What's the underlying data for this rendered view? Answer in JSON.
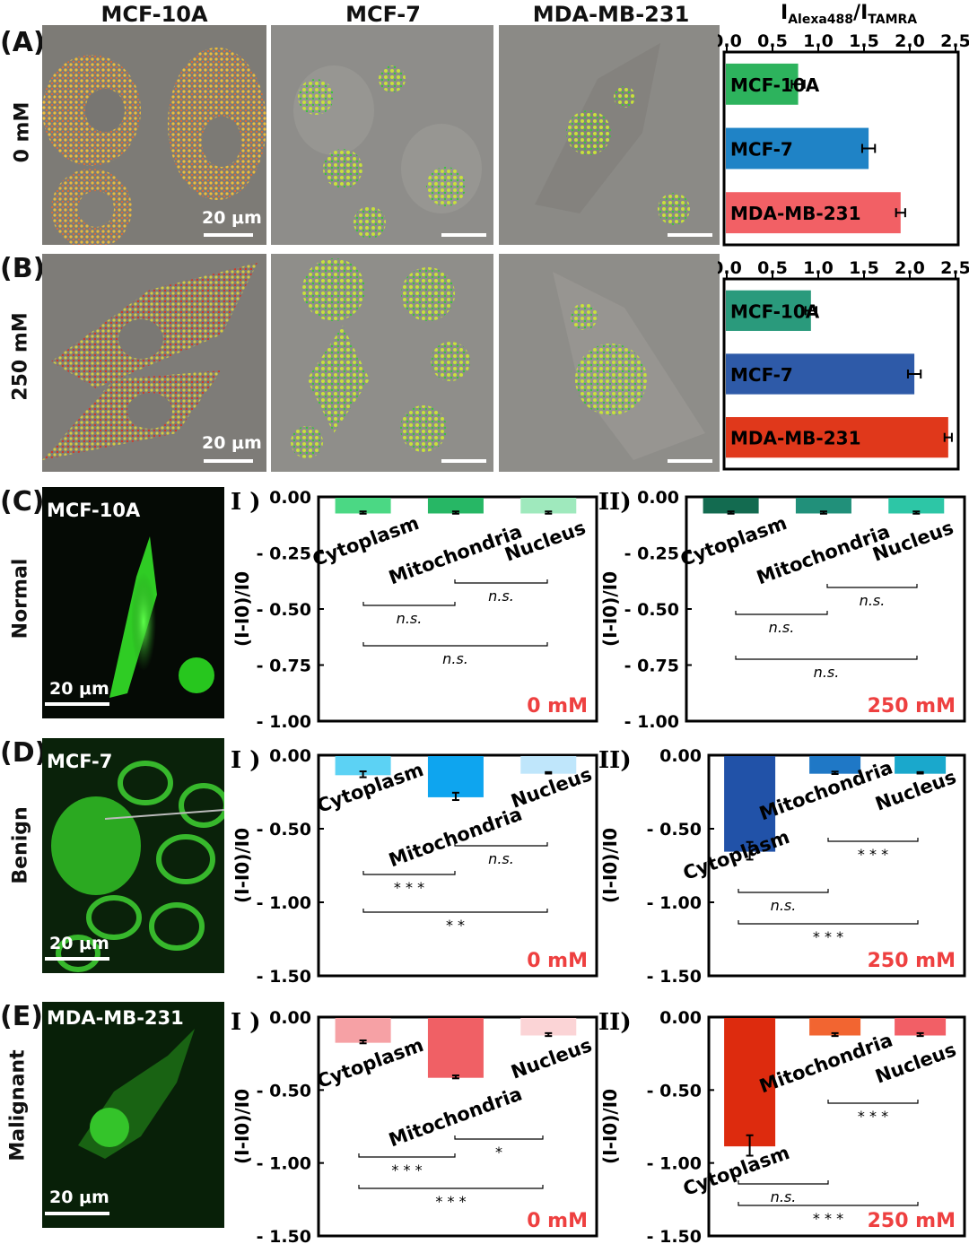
{
  "columns": {
    "mcf10a": "MCF-10A",
    "mcf7": "MCF-7",
    "mda": "MDA-MB-231"
  },
  "panels": {
    "A": "(A)",
    "B": "(B)",
    "C": "(C)",
    "D": "(D)",
    "E": "(E)"
  },
  "rows": {
    "a": "0 mM",
    "b": "250 mM",
    "c": "Normal",
    "d": "Benign",
    "e": "Malignant"
  },
  "scale": "20 μm",
  "fluor": {
    "c": "MCF-10A",
    "d": "MCF-7",
    "e": "MDA-MB-231"
  },
  "roman": {
    "one": "I )",
    "two": "II)"
  },
  "colors": {
    "microscope_gray": "#8a8a86",
    "green_fluor": "#33e02a"
  },
  "chart_data": [
    {
      "id": "A",
      "type": "bar",
      "orientation": "horizontal",
      "title": "IAlexa488/ITAMRA",
      "title_main": "I",
      "title_sub1": "Alexa488",
      "title_mid": "/I",
      "title_sub2": "TAMRA",
      "xlim": [
        0,
        2.5
      ],
      "ticks": [
        "0.0",
        "0.5",
        "1.0",
        "1.5",
        "2.0",
        "2.5"
      ],
      "categories": [
        "MCF-10A",
        "MCF-7",
        "MDA-MB-231"
      ],
      "values": [
        0.78,
        1.55,
        1.9
      ],
      "errors": [
        0.07,
        0.07,
        0.05
      ],
      "colors": [
        "#2db35d",
        "#1f83c6",
        "#f26065"
      ]
    },
    {
      "id": "B",
      "type": "bar",
      "orientation": "horizontal",
      "title": "",
      "xlim": [
        0,
        2.5
      ],
      "ticks": [
        "0.0",
        "0.5",
        "1.0",
        "1.5",
        "2.0",
        "2.5"
      ],
      "categories": [
        "MCF-10A",
        "MCF-7",
        "MDA-MB-231"
      ],
      "values": [
        0.92,
        2.05,
        2.42
      ],
      "errors": [
        0.06,
        0.07,
        0.04
      ],
      "colors": [
        "#2a9a7c",
        "#2e5aa8",
        "#e0381b"
      ]
    },
    {
      "id": "C-I",
      "type": "bar",
      "ylabel": "(I-I0)/I0",
      "ylim": [
        -1.0,
        0
      ],
      "ticks": [
        "0.00",
        "- 0.25",
        "- 0.50",
        "- 0.75",
        "- 1.00"
      ],
      "categories": [
        "Cytoplasm",
        "Mitochondria",
        "Nucleus"
      ],
      "values": [
        -0.07,
        -0.07,
        -0.07
      ],
      "errors": [
        0.005,
        0.005,
        0.005
      ],
      "colors": [
        "#4bd884",
        "#27b765",
        "#9fe9bd"
      ],
      "significance": [
        "n.s.",
        "n.s.",
        "n.s."
      ],
      "condition": "0 mM"
    },
    {
      "id": "C-II",
      "type": "bar",
      "ylabel": "(I-I0)/I0",
      "ylim": [
        -1.0,
        0
      ],
      "ticks": [
        "0.00",
        "- 0.25",
        "- 0.50",
        "- 0.75",
        "- 1.00"
      ],
      "categories": [
        "Cytoplasm",
        "Mitochondria",
        "Nucleus"
      ],
      "values": [
        -0.07,
        -0.07,
        -0.07
      ],
      "errors": [
        0.005,
        0.005,
        0.005
      ],
      "colors": [
        "#136b50",
        "#21907a",
        "#2dc6a6"
      ],
      "significance": [
        "n.s.",
        "n.s.",
        "n.s."
      ],
      "condition": "250 mM"
    },
    {
      "id": "D-I",
      "type": "bar",
      "ylabel": "(I-I0)/I0",
      "ylim": [
        -1.5,
        0
      ],
      "ticks": [
        "0.00",
        "- 0.50",
        "- 1.00",
        "- 1.50"
      ],
      "categories": [
        "Cytoplasm",
        "Mitochondria",
        "Nucleus"
      ],
      "values": [
        -0.13,
        -0.28,
        -0.12
      ],
      "errors": [
        0.02,
        0.025,
        0.005
      ],
      "colors": [
        "#5cd2f4",
        "#0ea5ef",
        "#bfe6fb"
      ],
      "significance": [
        "* * *",
        "* *",
        "n.s."
      ],
      "condition": "0 mM"
    },
    {
      "id": "D-II",
      "type": "bar",
      "ylabel": "(I-I0)/I0",
      "ylim": [
        -1.5,
        0
      ],
      "ticks": [
        "0.00",
        "- 0.50",
        "- 1.00",
        "- 1.50"
      ],
      "categories": [
        "Cytoplasm",
        "Mitochondria",
        "Nucleus"
      ],
      "values": [
        -0.65,
        -0.12,
        -0.12
      ],
      "errors": [
        0.06,
        0.008,
        0.005
      ],
      "colors": [
        "#2152a8",
        "#1f78c6",
        "#1aa8cc"
      ],
      "significance": [
        "n.s.",
        "* * *",
        "* * *"
      ],
      "condition": "250 mM"
    },
    {
      "id": "E-I",
      "type": "bar",
      "ylabel": "(I-I0)/I0",
      "ylim": [
        -1.5,
        0
      ],
      "ticks": [
        "0.00",
        "- 0.50",
        "- 1.00",
        "- 1.50"
      ],
      "categories": [
        "Cytoplasm",
        "Mitochondria",
        "Nucleus"
      ],
      "values": [
        -0.17,
        -0.41,
        -0.12
      ],
      "errors": [
        0.01,
        0.01,
        0.01
      ],
      "colors": [
        "#f6a1a5",
        "#f06065",
        "#fbd4d6"
      ],
      "significance": [
        "* * *",
        "* * *",
        "*"
      ],
      "condition": "0 mM"
    },
    {
      "id": "E-II",
      "type": "bar",
      "ylabel": "(I-I0)/I0",
      "ylim": [
        -1.5,
        0
      ],
      "ticks": [
        "0.00",
        "- 0.50",
        "- 1.00",
        "- 1.50"
      ],
      "categories": [
        "Cytoplasm",
        "Mitochondria",
        "Nucleus"
      ],
      "values": [
        -0.88,
        -0.12,
        -0.12
      ],
      "errors": [
        0.07,
        0.01,
        0.01
      ],
      "colors": [
        "#dd2b0e",
        "#f26531",
        "#f25f66"
      ],
      "significance": [
        "n.s.",
        "* * *",
        "* * *"
      ],
      "condition": "250 mM"
    }
  ]
}
